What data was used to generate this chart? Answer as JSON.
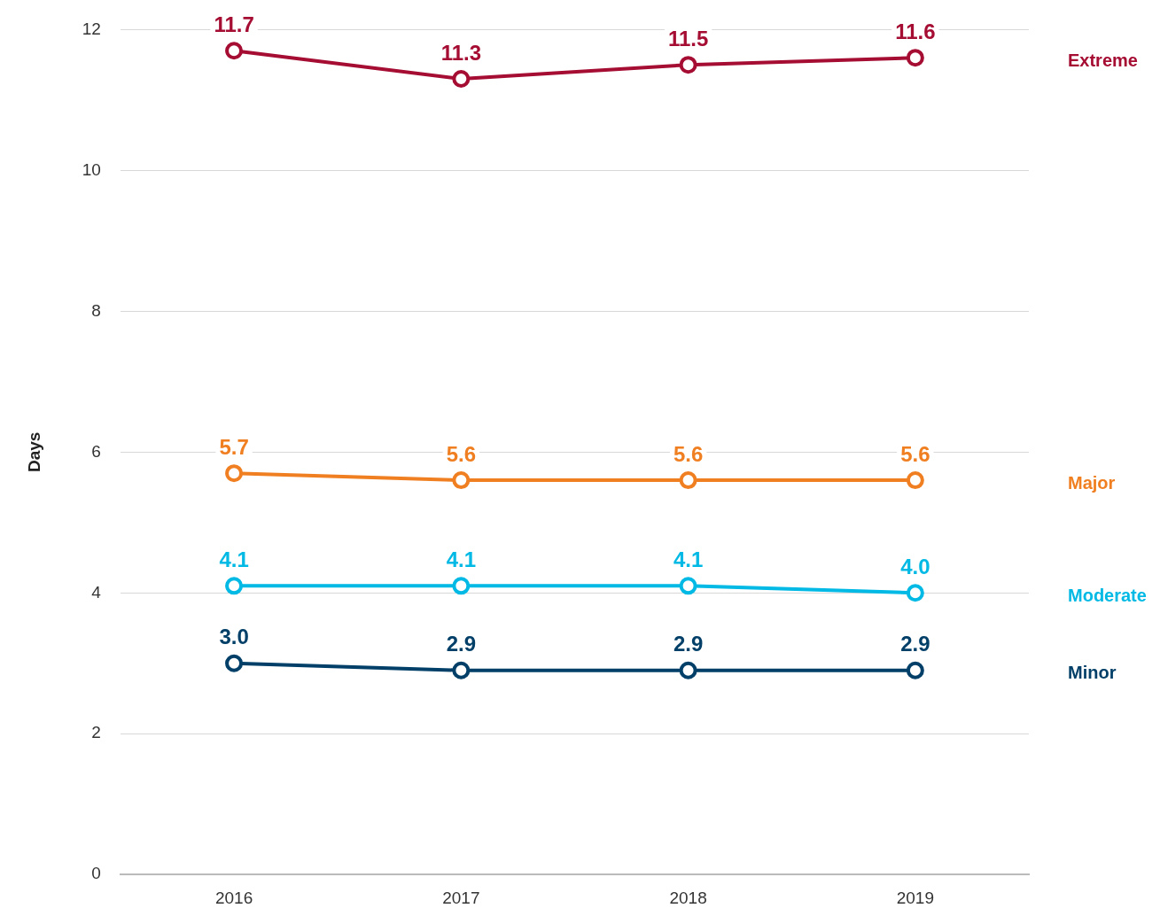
{
  "chart_data": {
    "type": "line",
    "ylabel": "Days",
    "categories": [
      "2016",
      "2017",
      "2018",
      "2019"
    ],
    "series": [
      {
        "name": "Extreme",
        "color": "#a50d33",
        "values": [
          11.7,
          11.3,
          11.5,
          11.6
        ],
        "value_labels": [
          "11.7",
          "11.3",
          "11.5",
          "11.6"
        ]
      },
      {
        "name": "Major",
        "color": "#f07f21",
        "values": [
          5.7,
          5.6,
          5.6,
          5.6
        ],
        "value_labels": [
          "5.7",
          "5.6",
          "5.6",
          "5.6"
        ]
      },
      {
        "name": "Moderate",
        "color": "#00b9e4",
        "values": [
          4.1,
          4.1,
          4.1,
          4.0
        ],
        "value_labels": [
          "4.1",
          "4.1",
          "4.1",
          "4.0"
        ]
      },
      {
        "name": "Minor",
        "color": "#003f68",
        "values": [
          3.0,
          2.9,
          2.9,
          2.9
        ],
        "value_labels": [
          "3.0",
          "2.9",
          "2.9",
          "2.9"
        ]
      }
    ],
    "ylim": [
      0,
      12
    ],
    "yticks": [
      0,
      2,
      4,
      6,
      8,
      10,
      12
    ],
    "grid": "y",
    "marker": "circle",
    "line_style": "solid"
  }
}
